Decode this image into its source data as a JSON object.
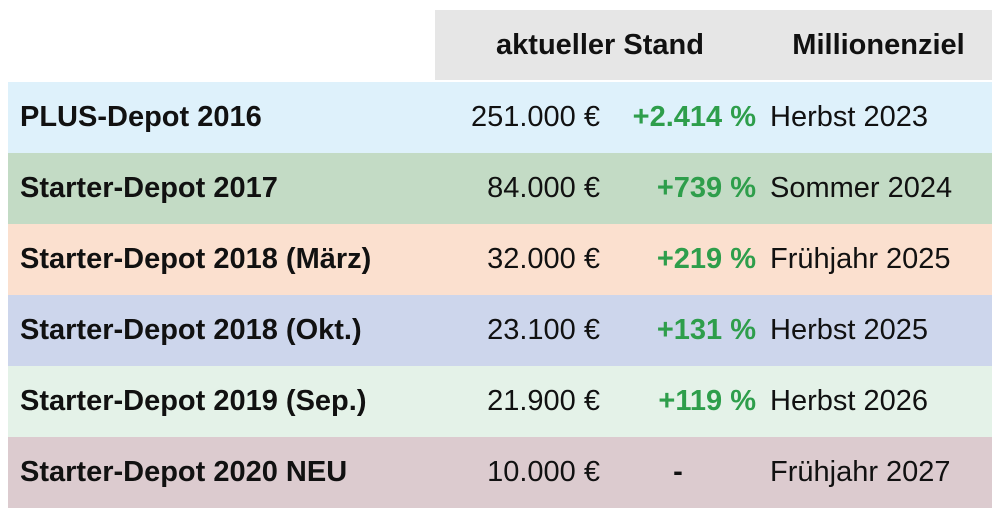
{
  "header": {
    "stand_label": "aktueller Stand",
    "goal_label": "Millionenziel"
  },
  "colors": {
    "header_bg": "#e6e6e6",
    "positive": "#2e9e4b"
  },
  "rows": [
    {
      "name": "PLUS-Depot 2016",
      "value": "251.000 €",
      "change": "+2.414 %",
      "goal": "Herbst 2023",
      "color": "#def1fb"
    },
    {
      "name": "Starter-Depot 2017",
      "value": "84.000 €",
      "change": "+739 %",
      "goal": "Sommer 2024",
      "color": "#c3dbc5"
    },
    {
      "name": "Starter-Depot 2018 (März)",
      "value": "32.000 €",
      "change": "+219 %",
      "goal": "Frühjahr 2025",
      "color": "#fbe0cf"
    },
    {
      "name": "Starter-Depot 2018 (Okt.)",
      "value": "23.100 €",
      "change": "+131 %",
      "goal": "Herbst 2025",
      "color": "#cdd6ec"
    },
    {
      "name": "Starter-Depot 2019 (Sep.)",
      "value": "21.900 €",
      "change": "+119 %",
      "goal": "Herbst 2026",
      "color": "#e4f2e8"
    },
    {
      "name": "Starter-Depot 2020 NEU",
      "value": "10.000 €",
      "change": "-",
      "goal": "Frühjahr 2027",
      "color": "#dccbcf"
    }
  ]
}
